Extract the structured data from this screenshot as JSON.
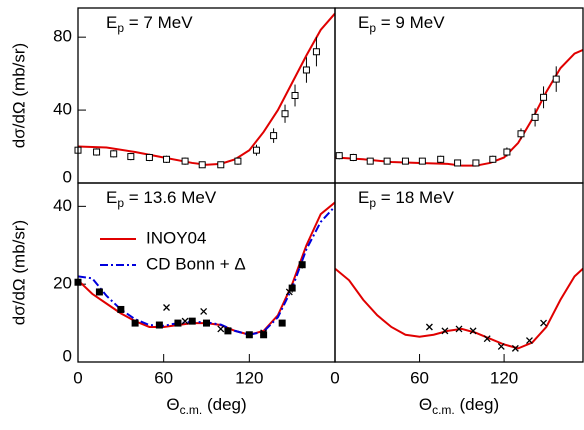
{
  "chart_data": [
    {
      "type": "line",
      "title": [
        "E",
        "p",
        " = 7 MeV"
      ],
      "y_label": "dσ/dΩ (mb/sr)",
      "xlim": [
        0,
        180
      ],
      "ylim": [
        0,
        96
      ],
      "yticks": [
        0,
        40,
        80
      ],
      "series": [
        {
          "style": "line",
          "color": "#e00000",
          "x": [
            0,
            20,
            40,
            60,
            80,
            90,
            100,
            110,
            120,
            130,
            140,
            150,
            160,
            170,
            180
          ],
          "values": [
            20,
            19.5,
            17,
            14,
            11,
            10,
            10.5,
            13,
            18,
            28,
            40,
            55,
            70,
            84,
            93
          ]
        },
        {
          "style": "open-square",
          "color": "#000000",
          "x": [
            0,
            13,
            25,
            37,
            50,
            62,
            75,
            87,
            100,
            112,
            125,
            137,
            145,
            152,
            160,
            167
          ],
          "values": [
            18,
            17,
            16,
            14.5,
            14,
            13,
            12,
            10,
            10,
            12,
            18,
            26,
            38,
            48,
            62,
            72
          ],
          "errors": [
            2,
            2,
            2,
            2,
            2,
            2,
            2,
            1.5,
            1.5,
            2,
            3,
            4,
            5,
            6,
            7,
            8
          ]
        }
      ]
    },
    {
      "type": "line",
      "title": [
        "E",
        "p",
        " = 9 MeV"
      ],
      "xlim": [
        0,
        176
      ],
      "ylim": [
        0,
        96
      ],
      "series": [
        {
          "style": "line",
          "color": "#e00000",
          "x": [
            0,
            20,
            40,
            60,
            80,
            90,
            100,
            110,
            120,
            130,
            140,
            150,
            160,
            170,
            176
          ],
          "values": [
            14,
            13,
            11.5,
            11,
            10.5,
            9.5,
            9.5,
            11,
            14,
            22,
            35,
            50,
            63,
            71,
            73
          ]
        },
        {
          "style": "open-square",
          "color": "#000000",
          "x": [
            3,
            13,
            25,
            37,
            50,
            62,
            75,
            87,
            100,
            112,
            122,
            132,
            142,
            148,
            157
          ],
          "values": [
            15,
            14,
            12,
            12,
            12,
            12,
            13,
            11,
            11,
            13,
            17,
            27,
            36,
            47,
            57
          ],
          "errors": [
            2,
            2,
            1.5,
            1.5,
            1.5,
            1.5,
            2,
            1.5,
            1.5,
            2,
            2.5,
            3,
            5,
            6,
            7
          ]
        }
      ]
    },
    {
      "type": "line",
      "title": [
        "E",
        "p",
        " = 13.6 MeV"
      ],
      "y_label": "dσ/dΩ (mb/sr)",
      "x_label": [
        "Θ",
        "c.m.",
        " (deg)"
      ],
      "xlim": [
        0,
        180
      ],
      "ylim": [
        0,
        46
      ],
      "xticks": [
        0,
        60,
        120
      ],
      "yticks": [
        0,
        20,
        40
      ],
      "legend": "upper-left",
      "series": [
        {
          "name": "INOY04",
          "style": "line",
          "color": "#e00000",
          "x": [
            0,
            10,
            20,
            30,
            40,
            50,
            60,
            70,
            80,
            90,
            100,
            110,
            120,
            130,
            140,
            150,
            160,
            170,
            180
          ],
          "values": [
            21,
            17.5,
            15,
            12.5,
            10.5,
            9,
            9,
            9.5,
            10,
            10,
            9.5,
            8,
            7,
            8,
            12,
            20,
            30,
            38,
            41
          ]
        },
        {
          "name": "CD Bonn + Δ",
          "style": "dashdot",
          "color": "#0000dd",
          "x": [
            0,
            10,
            20,
            30,
            40,
            50,
            60,
            70,
            80,
            90,
            100,
            110,
            120,
            130,
            140,
            150,
            160,
            170,
            180
          ],
          "values": [
            22,
            21.5,
            17,
            13.5,
            11,
            9.5,
            9.3,
            10,
            10.3,
            10.2,
            9.6,
            8,
            7,
            7.8,
            11.5,
            19,
            29,
            36,
            40
          ]
        },
        {
          "style": "filled-square",
          "color": "#000000",
          "x": [
            0,
            15,
            30,
            40,
            57,
            70,
            80,
            90,
            105,
            120,
            130,
            143,
            150,
            157
          ],
          "values": [
            20.5,
            18,
            13.5,
            10,
            9.5,
            10,
            10.5,
            10,
            8,
            7,
            7,
            10,
            19,
            25
          ],
          "errors": [
            0.7,
            0.6,
            0.5,
            0.5,
            0.5,
            0.5,
            0.5,
            0.5,
            0.5,
            0.4,
            0.4,
            0.5,
            1.2,
            1
          ]
        },
        {
          "style": "cross",
          "color": "#000000",
          "x": [
            62,
            75,
            88,
            100,
            130,
            148
          ],
          "values": [
            14,
            10.5,
            13,
            8.5,
            7.5,
            18
          ]
        }
      ]
    },
    {
      "type": "line",
      "title": [
        "E",
        "p",
        " = 18 MeV"
      ],
      "x_label": [
        "Θ",
        "c.m.",
        " (deg)"
      ],
      "xlim": [
        0,
        176
      ],
      "ylim": [
        0,
        46
      ],
      "xticks": [
        0,
        60,
        120
      ],
      "series": [
        {
          "style": "line",
          "color": "#e00000",
          "x": [
            0,
            10,
            20,
            30,
            40,
            50,
            60,
            70,
            80,
            90,
            100,
            110,
            120,
            130,
            140,
            150,
            160,
            170,
            176
          ],
          "values": [
            24,
            21,
            16,
            12,
            9,
            7,
            6.5,
            7,
            8,
            8.5,
            7.5,
            6,
            4.5,
            3.5,
            5,
            9,
            16,
            22,
            24
          ]
        },
        {
          "style": "cross",
          "color": "#000000",
          "x": [
            67,
            78,
            88,
            98,
            108,
            118,
            128,
            138,
            148
          ],
          "values": [
            9,
            8,
            8.5,
            8,
            6,
            4,
            3.5,
            5.5,
            10
          ]
        }
      ]
    }
  ]
}
